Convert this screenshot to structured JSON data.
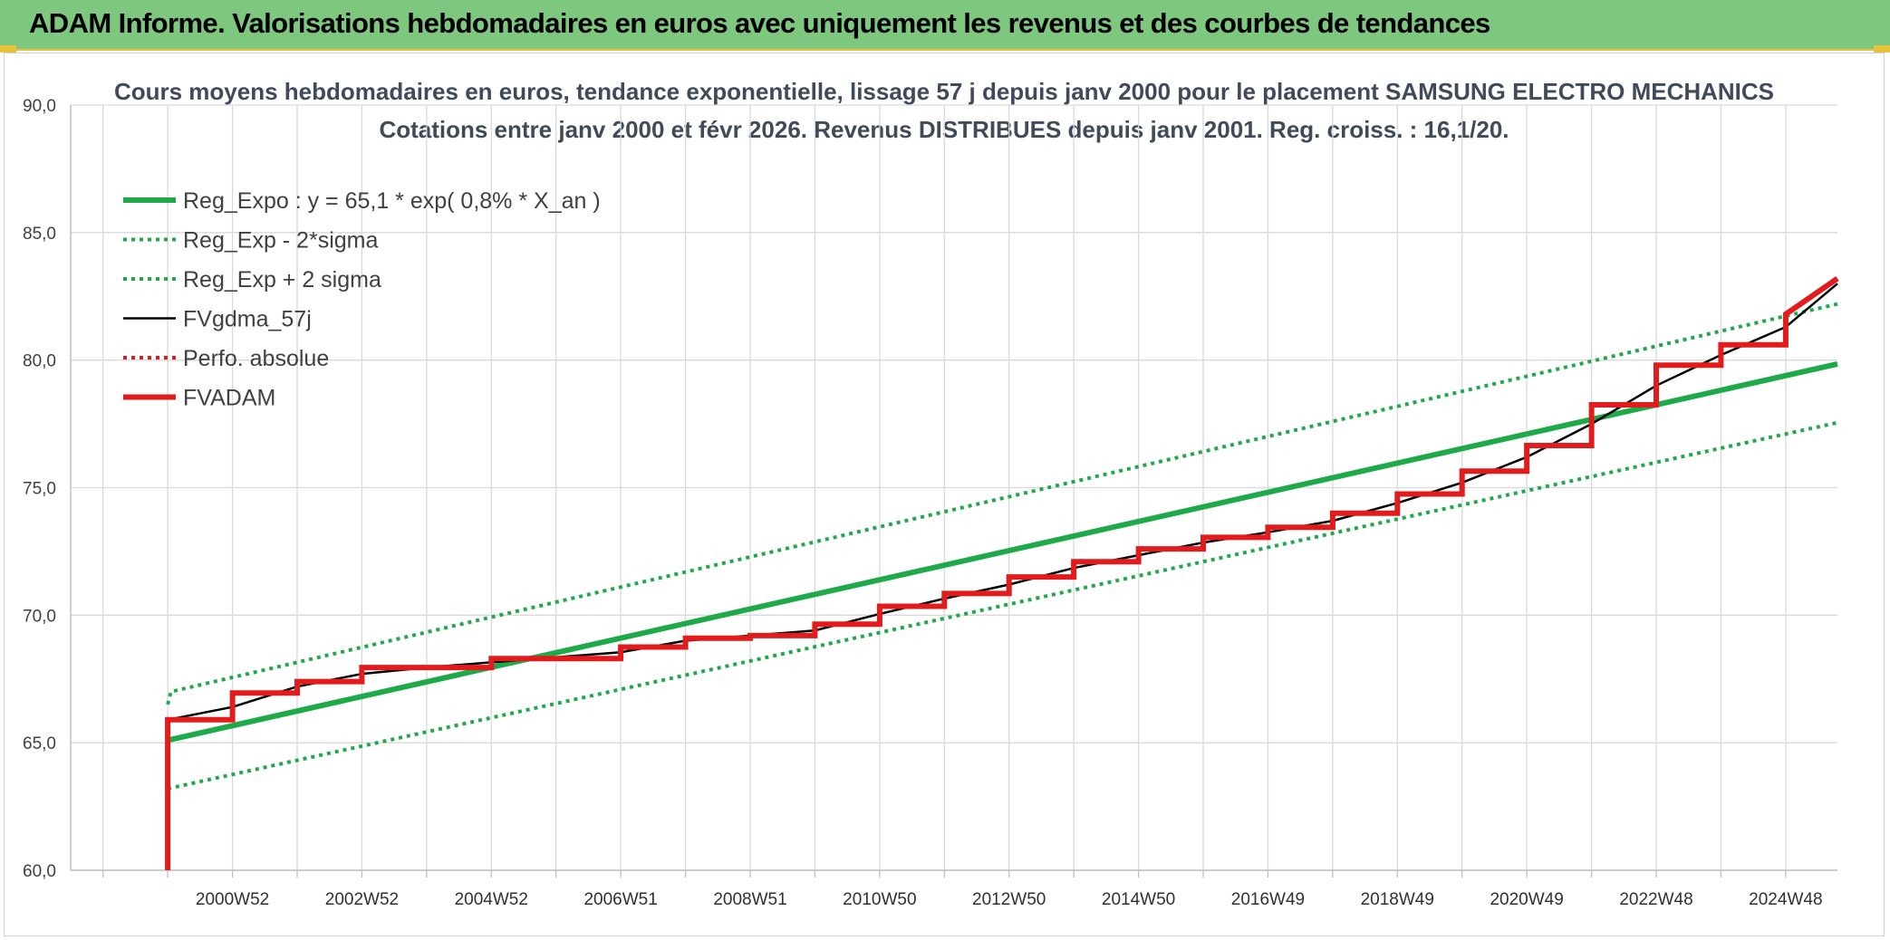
{
  "header": {
    "title": "ADAM Informe. Valorisations hebdomadaires en euros avec uniquement les revenus et des courbes de tendances"
  },
  "chart_data": {
    "type": "line",
    "title": "Cours moyens hebdomadaires en euros, tendance exponentielle, lissage 57 j depuis janv 2000 pour le placement SAMSUNG ELECTRO MECHANICS",
    "subtitle": "Cotations entre janv 2000 et févr 2026. Revenus DISTRIBUES depuis janv 2001. Reg. croiss. : 16,1/20.",
    "xlabel": "",
    "ylabel": "",
    "ylim": [
      60,
      90
    ],
    "xlim": [
      1998.5,
      2025.8
    ],
    "grid": true,
    "legend_position": "top-left",
    "y_ticks": [
      "60,0",
      "65,0",
      "70,0",
      "75,0",
      "80,0",
      "85,0",
      "90,0"
    ],
    "x_tick_labels": [
      {
        "x": 2001.0,
        "label": "2000W52"
      },
      {
        "x": 2003.0,
        "label": "2002W52"
      },
      {
        "x": 2005.0,
        "label": "2004W52"
      },
      {
        "x": 2007.0,
        "label": "2006W51"
      },
      {
        "x": 2009.0,
        "label": "2008W51"
      },
      {
        "x": 2011.0,
        "label": "2010W50"
      },
      {
        "x": 2013.0,
        "label": "2012W50"
      },
      {
        "x": 2015.0,
        "label": "2014W50"
      },
      {
        "x": 2017.0,
        "label": "2016W49"
      },
      {
        "x": 2019.0,
        "label": "2018W49"
      },
      {
        "x": 2021.0,
        "label": "2020W49"
      },
      {
        "x": 2023.0,
        "label": "2022W48"
      },
      {
        "x": 2025.0,
        "label": "2024W48"
      }
    ],
    "series": [
      {
        "name": "Reg_Expo : y = 65,1 * exp( 0,8% *  X_an )",
        "color": "#1faa4a",
        "style": "solid-thick",
        "x": [
          2000.0,
          2025.8
        ],
        "y": [
          65.1,
          79.85
        ]
      },
      {
        "name": "Reg_Exp - 2*sigma",
        "color": "#1faa4a",
        "style": "dotted",
        "x": [
          2000.0,
          2025.8
        ],
        "y": [
          63.2,
          77.55
        ]
      },
      {
        "name": "Reg_Exp + 2 sigma",
        "color": "#1faa4a",
        "style": "dotted",
        "x": [
          2000.0,
          2000.05,
          2025.8
        ],
        "y": [
          66.5,
          67.0,
          82.2
        ]
      },
      {
        "name": "FVgdma_57j",
        "color": "#000000",
        "style": "solid",
        "x": [
          2000.0,
          2001.0,
          2002.0,
          2003.0,
          2004.0,
          2005.0,
          2006.0,
          2007.0,
          2008.0,
          2009.0,
          2010.0,
          2011.0,
          2012.0,
          2013.0,
          2014.0,
          2015.0,
          2016.0,
          2017.0,
          2018.0,
          2019.0,
          2020.0,
          2021.0,
          2022.0,
          2023.0,
          2024.0,
          2025.0,
          2025.8
        ],
        "y": [
          65.9,
          66.4,
          67.2,
          67.7,
          67.95,
          68.15,
          68.35,
          68.55,
          69.0,
          69.2,
          69.4,
          70.05,
          70.65,
          71.2,
          71.85,
          72.35,
          72.85,
          73.25,
          73.7,
          74.4,
          75.2,
          76.2,
          77.5,
          79.0,
          80.2,
          81.3,
          83.0
        ]
      },
      {
        "name": "Perfo. absolue",
        "color": "#e11b1b",
        "style": "dotted",
        "x": [],
        "y": []
      },
      {
        "name": "FVADAM",
        "color": "#e21c1c",
        "style": "solid-thick",
        "x": [
          2000.0,
          2000.0,
          2001.0,
          2001.0,
          2002.0,
          2002.0,
          2003.0,
          2003.0,
          2004.0,
          2004.0,
          2005.0,
          2005.0,
          2006.0,
          2006.0,
          2007.0,
          2007.0,
          2008.0,
          2008.0,
          2009.0,
          2009.0,
          2010.0,
          2010.0,
          2011.0,
          2011.0,
          2012.0,
          2012.0,
          2013.0,
          2013.0,
          2014.0,
          2014.0,
          2015.0,
          2015.0,
          2016.0,
          2016.0,
          2017.0,
          2017.0,
          2018.0,
          2018.0,
          2019.0,
          2019.0,
          2020.0,
          2020.0,
          2021.0,
          2021.0,
          2022.0,
          2022.0,
          2023.0,
          2023.0,
          2024.0,
          2024.0,
          2025.0,
          2025.0,
          2025.8
        ],
        "y": [
          60.0,
          65.9,
          65.9,
          66.95,
          66.95,
          67.4,
          67.4,
          67.95,
          67.95,
          67.95,
          67.95,
          68.3,
          68.3,
          68.3,
          68.3,
          68.75,
          68.75,
          69.1,
          69.1,
          69.2,
          69.2,
          69.65,
          69.65,
          70.35,
          70.35,
          70.85,
          70.85,
          71.5,
          71.5,
          72.1,
          72.1,
          72.6,
          72.6,
          73.05,
          73.05,
          73.45,
          73.45,
          74.0,
          74.0,
          74.75,
          74.75,
          75.65,
          75.65,
          76.65,
          76.65,
          78.25,
          78.25,
          79.8,
          79.8,
          80.6,
          80.6,
          81.8,
          83.2
        ]
      }
    ]
  }
}
